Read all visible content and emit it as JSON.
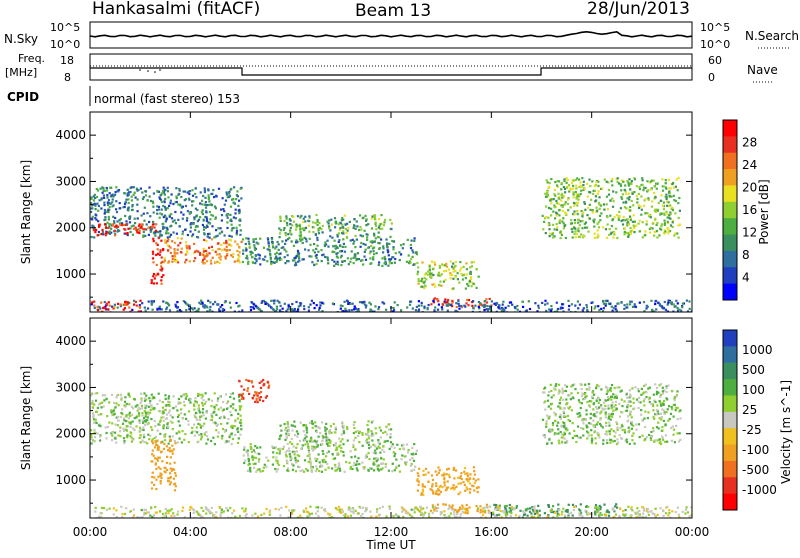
{
  "header": {
    "station": "Hankasalmi (fitACF)",
    "beam": "Beam 13",
    "date": "28/Jun/2013"
  },
  "top_panels": {
    "nsky_label": "N.Sky",
    "nsky_ticks": [
      "10^5",
      "10^0"
    ],
    "nsearch_label": "N.Search",
    "nsearch_ticks": [
      "10^5",
      "10^0"
    ],
    "freq_label_line1": "Freq.",
    "freq_label_line2": "[MHz]",
    "freq_ticks": [
      "18",
      "8"
    ],
    "nave_label": "Nave",
    "nave_ticks": [
      "60",
      "0"
    ],
    "cpid_label": "CPID",
    "cpid_text": "normal (fast stereo) 153"
  },
  "axes": {
    "ylabel": "Slant Range [km]",
    "yticks": [
      "1000",
      "2000",
      "3000",
      "4000"
    ],
    "xticks": [
      "00:00",
      "04:00",
      "08:00",
      "12:00",
      "16:00",
      "20:00",
      "00:00"
    ],
    "xlabel": "Time UT"
  },
  "colorbars": {
    "power": {
      "label": "Power [dB]",
      "ticks": [
        "4",
        "8",
        "12",
        "16",
        "20",
        "24",
        "28"
      ],
      "colors": [
        "#0000ff",
        "#1f3fbf",
        "#2f6f9f",
        "#3a8f5f",
        "#4caf3f",
        "#8fcf2f",
        "#e8e020",
        "#f0a020",
        "#f07020",
        "#e83020",
        "#ff0000"
      ]
    },
    "velocity": {
      "label": "Velocity [m s^-1]",
      "ticks": [
        "1000",
        "500",
        "100",
        "25",
        "-25",
        "-100",
        "-500",
        "-1000"
      ],
      "colors": [
        "#1f3fbf",
        "#2f6f9f",
        "#3a8f5f",
        "#4caf3f",
        "#8fcf2f",
        "#c8c8c0",
        "#f0c020",
        "#f0a020",
        "#f07020",
        "#e83020",
        "#ff0000"
      ]
    }
  },
  "chart_data": [
    {
      "type": "heatmap",
      "title": "Power",
      "x_range_hours": [
        0,
        24
      ],
      "ylim": [
        180,
        4500
      ],
      "ylabel": "Slant Range [km]",
      "colorscale_label": "Power [dB]",
      "colorscale_range": [
        0,
        30
      ],
      "regions": [
        {
          "t0": 0.0,
          "t1": 6.0,
          "r0": 1800,
          "r1": 2900,
          "level": 8
        },
        {
          "t0": 0.1,
          "t1": 1.8,
          "r0": 1850,
          "r1": 2100,
          "level": 27
        },
        {
          "t0": 1.8,
          "t1": 2.6,
          "r0": 1900,
          "r1": 2100,
          "level": 26
        },
        {
          "t0": 2.4,
          "t1": 2.9,
          "r0": 800,
          "r1": 1800,
          "level": 28
        },
        {
          "t0": 2.9,
          "t1": 6.0,
          "r0": 1250,
          "r1": 1800,
          "level": 22
        },
        {
          "t0": 6.0,
          "t1": 13.0,
          "r0": 1200,
          "r1": 1800,
          "level": 9
        },
        {
          "t0": 7.5,
          "t1": 12.0,
          "r0": 1800,
          "r1": 2300,
          "level": 12
        },
        {
          "t0": 13.0,
          "t1": 15.5,
          "r0": 700,
          "r1": 1300,
          "level": 15
        },
        {
          "t0": 13.5,
          "t1": 16.0,
          "r0": 300,
          "r1": 500,
          "level": 27
        },
        {
          "t0": 18.0,
          "t1": 23.5,
          "r0": 1800,
          "r1": 3100,
          "level": 14
        },
        {
          "t0": 0.0,
          "t1": 24.0,
          "r0": 180,
          "r1": 450,
          "level": 6
        },
        {
          "t0": 0.0,
          "t1": 2.0,
          "r0": 180,
          "r1": 450,
          "level": 26
        }
      ]
    },
    {
      "type": "heatmap",
      "title": "Velocity",
      "x_range_hours": [
        0,
        24
      ],
      "ylim": [
        180,
        4500
      ],
      "ylabel": "Slant Range [km]",
      "colorscale_label": "Velocity [m s^-1]",
      "colorscale_range": [
        -1000,
        1000
      ],
      "regions": [
        {
          "t0": 0.0,
          "t1": 6.0,
          "r0": 1800,
          "r1": 2900,
          "v": 0
        },
        {
          "t0": 2.4,
          "t1": 3.4,
          "r0": 800,
          "r1": 1900,
          "v": -400
        },
        {
          "t0": 6.0,
          "t1": 13.0,
          "r0": 1200,
          "r1": 1800,
          "v": 0
        },
        {
          "t0": 7.5,
          "t1": 12.0,
          "r0": 1800,
          "r1": 2300,
          "v": 0
        },
        {
          "t0": 5.9,
          "t1": 7.1,
          "r0": 2700,
          "r1": 3200,
          "v": -700
        },
        {
          "t0": 13.0,
          "t1": 15.5,
          "r0": 700,
          "r1": 1300,
          "v": -300
        },
        {
          "t0": 13.5,
          "t1": 16.0,
          "r0": 300,
          "r1": 500,
          "v": -400
        },
        {
          "t0": 16.0,
          "t1": 21.0,
          "r0": 250,
          "r1": 500,
          "v": 150
        },
        {
          "t0": 18.0,
          "t1": 23.5,
          "r0": 1800,
          "r1": 3100,
          "v": 0
        },
        {
          "t0": 0.0,
          "t1": 24.0,
          "r0": 180,
          "r1": 450,
          "v": -50
        }
      ]
    }
  ]
}
